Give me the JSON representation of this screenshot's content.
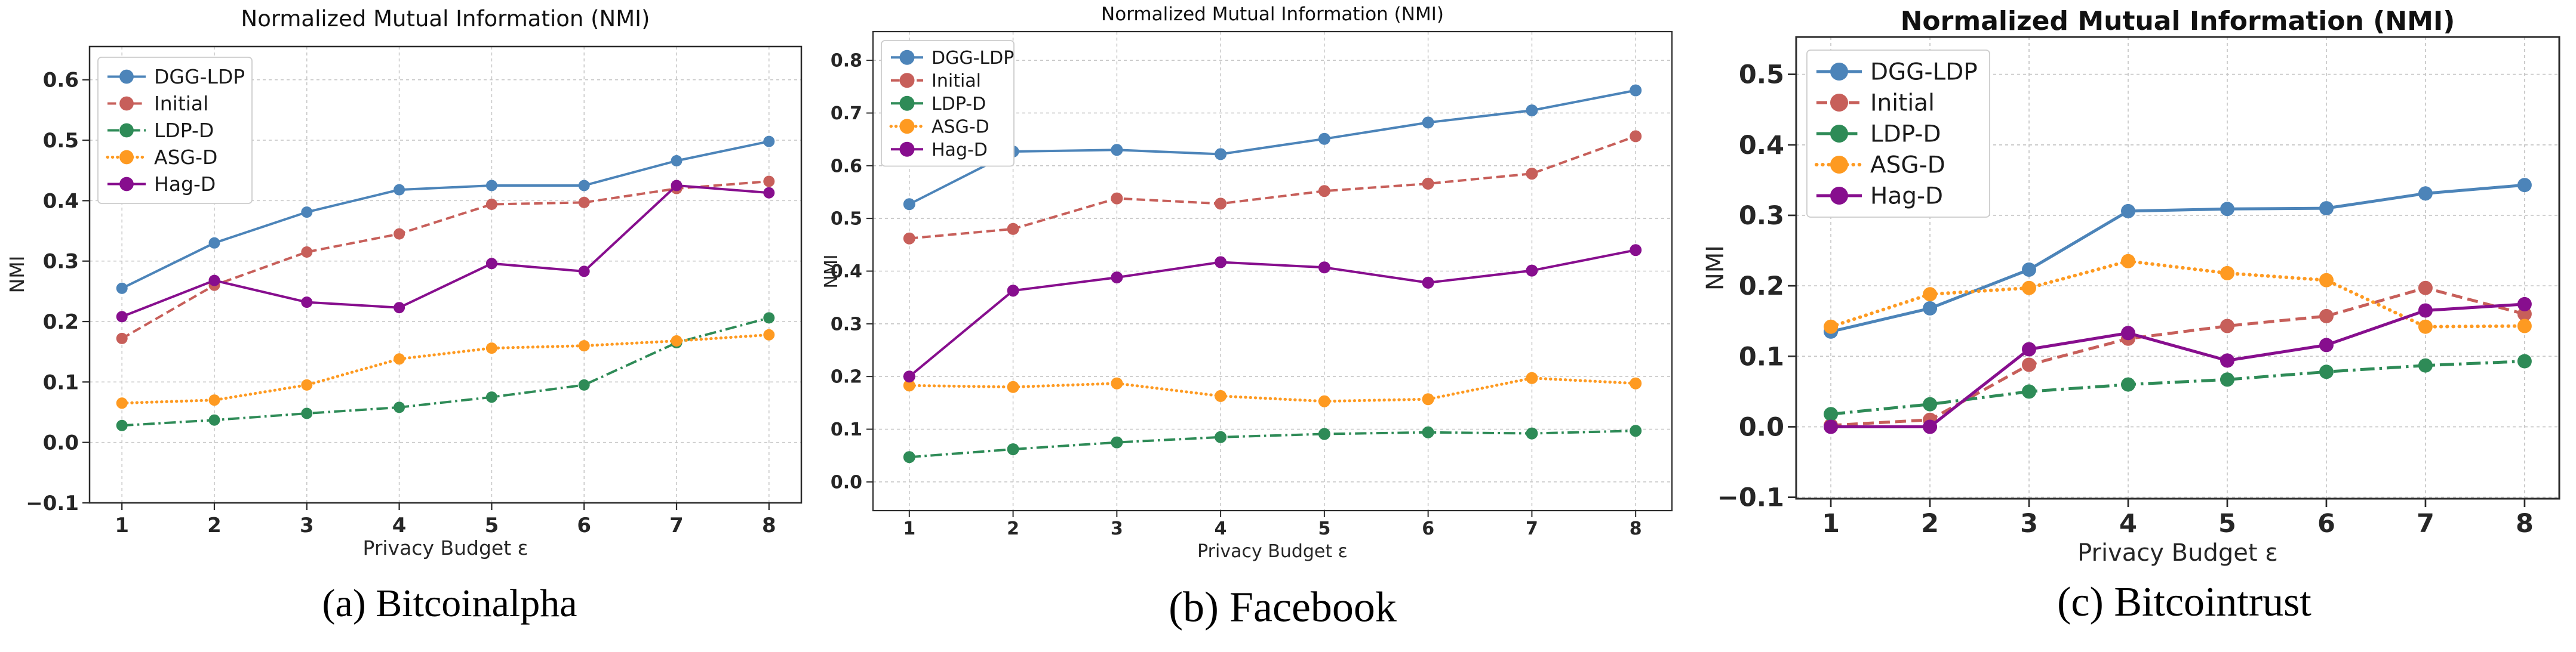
{
  "figure": {
    "background": "#ffffff",
    "grid_color": "#c9c9c9",
    "spine_color": "#2b2b2b",
    "text_color": "#262626"
  },
  "chart_data": [
    {
      "type": "line",
      "title": "Normalized Mutual Information (NMI)",
      "xlabel": "Privacy Budget ε",
      "ylabel": "NMI",
      "caption": "(a) Bitcoinalpha",
      "x": [
        1,
        2,
        3,
        4,
        5,
        6,
        7,
        8
      ],
      "xticks": [
        1,
        2,
        3,
        4,
        5,
        6,
        7,
        8
      ],
      "yticks": [
        -0.1,
        0.0,
        0.1,
        0.2,
        0.3,
        0.4,
        0.5,
        0.6
      ],
      "xlim": [
        0.65,
        8.35
      ],
      "ylim": [
        -0.1,
        0.655
      ],
      "grid": true,
      "legend_position": "upper left",
      "series": [
        {
          "name": "DGG-LDP",
          "style": "solid",
          "color": "#4c84b9",
          "values": [
            0.255,
            0.33,
            0.381,
            0.418,
            0.425,
            0.425,
            0.466,
            0.498
          ]
        },
        {
          "name": "Initial",
          "style": "dashed",
          "color": "#c75f5a",
          "values": [
            0.172,
            0.26,
            0.315,
            0.345,
            0.394,
            0.397,
            0.42,
            0.432
          ]
        },
        {
          "name": "LDP-D",
          "style": "dashdot",
          "color": "#2e8b57",
          "values": [
            0.028,
            0.037,
            0.048,
            0.058,
            0.075,
            0.095,
            0.165,
            0.206
          ]
        },
        {
          "name": "ASG-D",
          "style": "dotted",
          "color": "#fe9a21",
          "values": [
            0.065,
            0.07,
            0.095,
            0.138,
            0.156,
            0.16,
            0.168,
            0.178
          ]
        },
        {
          "name": "Hag-D",
          "style": "solid",
          "color": "#870e8e",
          "values": [
            0.208,
            0.268,
            0.232,
            0.223,
            0.296,
            0.283,
            0.425,
            0.413
          ]
        }
      ]
    },
    {
      "type": "line",
      "title": "Normalized Mutual Information (NMI)",
      "xlabel": "Privacy Budget ε",
      "ylabel": "NMI",
      "caption": "(b) Facebook",
      "x": [
        1,
        2,
        3,
        4,
        5,
        6,
        7,
        8
      ],
      "xticks": [
        1,
        2,
        3,
        4,
        5,
        6,
        7,
        8
      ],
      "yticks": [
        0.0,
        0.1,
        0.2,
        0.3,
        0.4,
        0.5,
        0.6,
        0.7,
        0.8
      ],
      "xlim": [
        0.65,
        8.35
      ],
      "ylim": [
        -0.0545,
        0.8545
      ],
      "grid": true,
      "legend_position": "upper left",
      "series": [
        {
          "name": "DGG-LDP",
          "style": "solid",
          "color": "#4c84b9",
          "values": [
            0.527,
            0.627,
            0.63,
            0.622,
            0.651,
            0.682,
            0.705,
            0.743
          ]
        },
        {
          "name": "Initial",
          "style": "dashed",
          "color": "#c75f5a",
          "values": [
            0.462,
            0.48,
            0.538,
            0.528,
            0.552,
            0.566,
            0.585,
            0.656
          ]
        },
        {
          "name": "LDP-D",
          "style": "dashdot",
          "color": "#2e8b57",
          "values": [
            0.047,
            0.062,
            0.075,
            0.085,
            0.091,
            0.094,
            0.092,
            0.097
          ]
        },
        {
          "name": "ASG-D",
          "style": "dotted",
          "color": "#fe9a21",
          "values": [
            0.183,
            0.18,
            0.187,
            0.163,
            0.153,
            0.157,
            0.197,
            0.187
          ]
        },
        {
          "name": "Hag-D",
          "style": "solid",
          "color": "#870e8e",
          "values": [
            0.2,
            0.363,
            0.388,
            0.417,
            0.407,
            0.378,
            0.401,
            0.44
          ]
        }
      ]
    },
    {
      "type": "line",
      "title": "Normalized Mutual Information (NMI)",
      "xlabel": "Privacy Budget ε",
      "ylabel": "NMI",
      "caption": "(c) Bitcointrust",
      "x": [
        1,
        2,
        3,
        4,
        5,
        6,
        7,
        8
      ],
      "xticks": [
        1,
        2,
        3,
        4,
        5,
        6,
        7,
        8
      ],
      "yticks": [
        -0.1,
        0.0,
        0.1,
        0.2,
        0.3,
        0.4,
        0.5
      ],
      "xlim": [
        0.65,
        8.35
      ],
      "ylim": [
        -0.102,
        0.553
      ],
      "grid": true,
      "legend_position": "upper left",
      "series": [
        {
          "name": "DGG-LDP",
          "style": "solid",
          "color": "#4c84b9",
          "values": [
            0.135,
            0.168,
            0.223,
            0.306,
            0.309,
            0.31,
            0.331,
            0.343
          ]
        },
        {
          "name": "Initial",
          "style": "dashed",
          "color": "#c75f5a",
          "values": [
            0.002,
            0.01,
            0.088,
            0.125,
            0.143,
            0.157,
            0.197,
            0.16
          ]
        },
        {
          "name": "LDP-D",
          "style": "dashdot",
          "color": "#2e8b57",
          "values": [
            0.018,
            0.032,
            0.05,
            0.06,
            0.067,
            0.078,
            0.087,
            0.093
          ]
        },
        {
          "name": "ASG-D",
          "style": "dotted",
          "color": "#fe9a21",
          "values": [
            0.142,
            0.188,
            0.197,
            0.235,
            0.218,
            0.208,
            0.142,
            0.143
          ]
        },
        {
          "name": "Hag-D",
          "style": "solid",
          "color": "#870e8e",
          "values": [
            0.0,
            0.0,
            0.11,
            0.133,
            0.094,
            0.116,
            0.165,
            0.174
          ]
        }
      ]
    }
  ]
}
